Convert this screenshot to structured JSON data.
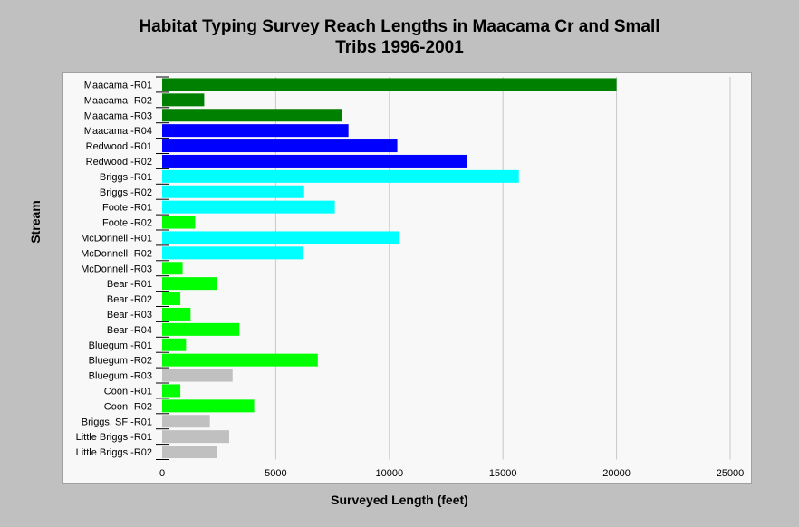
{
  "chart_data": {
    "type": "bar",
    "orientation": "horizontal",
    "title_lines": [
      "Habitat Typing Survey Reach Lengths in Maacama Cr and Small",
      "Tribs 1996-2001"
    ],
    "xlabel": "Surveyed Length (feet)",
    "ylabel": "Stream",
    "xlim": [
      0,
      25000
    ],
    "xticks": [
      0,
      5000,
      10000,
      15000,
      20000,
      25000
    ],
    "grid": "vertical",
    "legend": "none",
    "categories": [
      "Maacama -R01",
      "Maacama -R02",
      "Maacama -R03",
      "Maacama -R04",
      "Redwood -R01",
      "Redwood -R02",
      "Briggs -R01",
      "Briggs -R02",
      "Foote -R01",
      "Foote -R02",
      "McDonnell -R01",
      "McDonnell -R02",
      "McDonnell -R03",
      "Bear -R01",
      "Bear -R02",
      "Bear -R03",
      "Bear -R04",
      "Bluegum -R01",
      "Bluegum -R02",
      "Bluegum -R03",
      "Coon -R01",
      "Coon -R02",
      "Briggs, SF -R01",
      "Little Briggs -R01",
      "Little Briggs -R02"
    ],
    "values": [
      20000,
      1850,
      7900,
      8200,
      10350,
      13400,
      15700,
      6250,
      7600,
      1450,
      10450,
      6200,
      900,
      2400,
      800,
      1250,
      3400,
      1050,
      6850,
      3100,
      800,
      4050,
      2100,
      2950,
      2400
    ],
    "bar_colors": [
      "#008000",
      "#008000",
      "#008000",
      "#0000ff",
      "#0000ff",
      "#0000ff",
      "#00ffff",
      "#00ffff",
      "#00ffff",
      "#00ff00",
      "#00ffff",
      "#00ffff",
      "#00ff00",
      "#00ff00",
      "#00ff00",
      "#00ff00",
      "#00ff00",
      "#00ff00",
      "#00ff00",
      "#c0c0c0",
      "#00ff00",
      "#00ff00",
      "#c0c0c0",
      "#c0c0c0",
      "#c0c0c0"
    ]
  }
}
